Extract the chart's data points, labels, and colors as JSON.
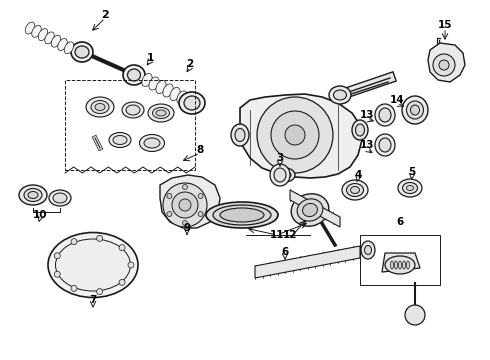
{
  "bg_color": "#ffffff",
  "lc": "#1a1a1a",
  "fs": 7.5,
  "fig_w": 4.9,
  "fig_h": 3.6,
  "dpi": 100
}
